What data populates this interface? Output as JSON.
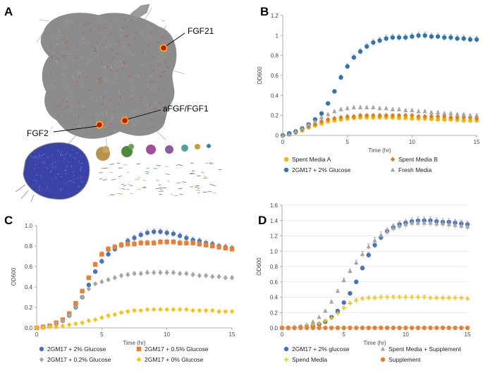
{
  "panel_labels": [
    "A",
    "B",
    "C",
    "D"
  ],
  "network": {
    "labels": [
      "FGF21",
      "aFGF/FGF1",
      "FGF2"
    ],
    "colors": {
      "main": "#8c8c8c",
      "edge": "#c03a2b",
      "node": "#e02020",
      "marker": "#d01010",
      "marker_ring": "#f2c100",
      "blue_cluster": "#3a43a8"
    }
  },
  "chart_data": [
    {
      "panel": "B",
      "type": "scatter",
      "xlabel": "Time (hr)",
      "ylabel": "OD600",
      "xlim": [
        0,
        15
      ],
      "ylim": [
        0,
        1.2
      ],
      "xticks": [
        0,
        5,
        10,
        15
      ],
      "yticks": [
        0,
        0.2,
        0.4,
        0.6,
        0.8,
        1,
        1.2
      ],
      "ytick_labels": [
        "0",
        "0.2",
        "0.4",
        "0.6",
        "0.8",
        "1",
        "1.2"
      ],
      "grid": false,
      "legend_position": "bottom",
      "x": [
        0,
        0.5,
        1,
        1.5,
        2,
        2.5,
        3,
        3.5,
        4,
        4.5,
        5,
        5.5,
        6,
        6.5,
        7,
        7.5,
        8,
        8.5,
        9,
        9.5,
        10,
        10.5,
        11,
        11.5,
        12,
        12.5,
        13,
        13.5,
        14,
        14.5,
        15
      ],
      "series": [
        {
          "name": "Spent Media A",
          "color": "#f5b800",
          "marker": "circle",
          "values": [
            0,
            0.01,
            0.03,
            0.05,
            0.08,
            0.1,
            0.12,
            0.14,
            0.15,
            0.16,
            0.17,
            0.175,
            0.18,
            0.18,
            0.18,
            0.18,
            0.18,
            0.18,
            0.175,
            0.175,
            0.17,
            0.17,
            0.17,
            0.165,
            0.16,
            0.16,
            0.16,
            0.155,
            0.15,
            0.15,
            0.15
          ]
        },
        {
          "name": "Spent Media B",
          "color": "#e07b1f",
          "marker": "diamond",
          "values": [
            0,
            0.01,
            0.03,
            0.06,
            0.09,
            0.11,
            0.14,
            0.16,
            0.17,
            0.18,
            0.19,
            0.19,
            0.2,
            0.2,
            0.2,
            0.2,
            0.2,
            0.2,
            0.2,
            0.2,
            0.2,
            0.19,
            0.19,
            0.19,
            0.19,
            0.19,
            0.18,
            0.18,
            0.18,
            0.18,
            0.17
          ]
        },
        {
          "name": "2GM17 + 2% Glucose",
          "color": "#2e75b6",
          "marker": "circle",
          "values": [
            0,
            0.02,
            0.04,
            0.07,
            0.11,
            0.16,
            0.22,
            0.32,
            0.44,
            0.58,
            0.69,
            0.78,
            0.84,
            0.89,
            0.93,
            0.95,
            0.97,
            0.98,
            0.98,
            0.98,
            0.99,
            1.0,
            1.0,
            0.99,
            0.99,
            0.98,
            0.98,
            0.97,
            0.97,
            0.96,
            0.96
          ]
        },
        {
          "name": "Fresh Media",
          "color": "#a6a6a6",
          "marker": "triangle",
          "values": [
            0,
            0.01,
            0.04,
            0.07,
            0.11,
            0.14,
            0.18,
            0.21,
            0.24,
            0.26,
            0.27,
            0.28,
            0.28,
            0.28,
            0.28,
            0.27,
            0.27,
            0.26,
            0.26,
            0.25,
            0.25,
            0.24,
            0.24,
            0.23,
            0.23,
            0.22,
            0.22,
            0.21,
            0.21,
            0.2,
            0.2
          ]
        }
      ]
    },
    {
      "panel": "C",
      "type": "scatter",
      "xlabel": "Time (hr)",
      "ylabel": "OD600",
      "xlim": [
        0,
        15
      ],
      "ylim": [
        0,
        1.0
      ],
      "xticks": [
        0,
        5,
        10,
        15
      ],
      "yticks": [
        0,
        0.2,
        0.4,
        0.6,
        0.8,
        1.0
      ],
      "ytick_labels": [
        "0.0",
        "0.2",
        "0.4",
        "0.6",
        "0.8",
        "1.0"
      ],
      "grid": false,
      "legend_position": "bottom",
      "x": [
        0,
        0.5,
        1,
        1.5,
        2,
        2.5,
        3,
        3.5,
        4,
        4.5,
        5,
        5.5,
        6,
        6.5,
        7,
        7.5,
        8,
        8.5,
        9,
        9.5,
        10,
        10.5,
        11,
        11.5,
        12,
        12.5,
        13,
        13.5,
        14,
        14.5,
        15
      ],
      "series": [
        {
          "name": "2GM17 + 2% Glucose",
          "color": "#4472c4",
          "marker": "circle",
          "values": [
            0,
            0.01,
            0.02,
            0.04,
            0.07,
            0.12,
            0.2,
            0.3,
            0.42,
            0.55,
            0.65,
            0.72,
            0.77,
            0.81,
            0.85,
            0.88,
            0.91,
            0.93,
            0.94,
            0.94,
            0.93,
            0.92,
            0.9,
            0.88,
            0.86,
            0.85,
            0.83,
            0.82,
            0.8,
            0.79,
            0.78
          ]
        },
        {
          "name": "2GM17 + 0.5% Glucose",
          "color": "#ed7d31",
          "marker": "square",
          "values": [
            0,
            0.01,
            0.02,
            0.05,
            0.08,
            0.14,
            0.24,
            0.36,
            0.49,
            0.62,
            0.72,
            0.77,
            0.79,
            0.81,
            0.82,
            0.82,
            0.83,
            0.83,
            0.83,
            0.84,
            0.84,
            0.84,
            0.83,
            0.83,
            0.83,
            0.82,
            0.81,
            0.8,
            0.79,
            0.78,
            0.77
          ]
        },
        {
          "name": "2GM17 + 0.2% Glucose",
          "color": "#a5a5a5",
          "marker": "diamond",
          "values": [
            0,
            0.01,
            0.02,
            0.04,
            0.07,
            0.12,
            0.2,
            0.3,
            0.38,
            0.43,
            0.45,
            0.47,
            0.49,
            0.51,
            0.52,
            0.53,
            0.53,
            0.54,
            0.54,
            0.54,
            0.54,
            0.54,
            0.53,
            0.53,
            0.52,
            0.51,
            0.51,
            0.5,
            0.5,
            0.49,
            0.49
          ]
        },
        {
          "name": "2GM17 + 0% Glucose",
          "color": "#ffc000",
          "marker": "diamond",
          "values": [
            0,
            0,
            0.01,
            0.01,
            0.02,
            0.03,
            0.04,
            0.05,
            0.07,
            0.08,
            0.1,
            0.12,
            0.13,
            0.15,
            0.16,
            0.17,
            0.17,
            0.18,
            0.18,
            0.18,
            0.18,
            0.18,
            0.18,
            0.18,
            0.17,
            0.17,
            0.17,
            0.17,
            0.16,
            0.16,
            0.16
          ]
        }
      ]
    },
    {
      "panel": "D",
      "type": "scatter",
      "xlabel": "Time (hr)",
      "ylabel": "OD600",
      "xlim": [
        0,
        15
      ],
      "ylim": [
        0,
        1.6
      ],
      "xticks": [
        0,
        5,
        10,
        15
      ],
      "yticks": [
        0,
        0.2,
        0.4,
        0.6,
        0.8,
        1.0,
        1.2,
        1.4,
        1.6
      ],
      "ytick_labels": [
        "0.0",
        "0.2",
        "0.4",
        "0.6",
        "0.8",
        "1.0",
        "1.2",
        "1.4",
        "1.6"
      ],
      "grid": true,
      "legend_position": "bottom",
      "x": [
        0,
        0.5,
        1,
        1.5,
        2,
        2.5,
        3,
        3.5,
        4,
        4.5,
        5,
        5.5,
        6,
        6.5,
        7,
        7.5,
        8,
        8.5,
        9,
        9.5,
        10,
        10.5,
        11,
        11.5,
        12,
        12.5,
        13,
        13.5,
        14,
        14.5,
        15
      ],
      "series": [
        {
          "name": "2GM17 + 2% glucose",
          "color": "#4472c4",
          "marker": "circle",
          "values": [
            0,
            0,
            0,
            0.01,
            0.02,
            0.03,
            0.05,
            0.08,
            0.14,
            0.22,
            0.33,
            0.45,
            0.6,
            0.78,
            0.95,
            1.08,
            1.18,
            1.26,
            1.31,
            1.35,
            1.37,
            1.39,
            1.4,
            1.4,
            1.4,
            1.39,
            1.38,
            1.38,
            1.37,
            1.36,
            1.35
          ]
        },
        {
          "name": "Spent Media + Supplement",
          "color": "#a5a5a5",
          "marker": "triangle",
          "values": [
            0,
            0,
            0.01,
            0.02,
            0.04,
            0.08,
            0.14,
            0.22,
            0.34,
            0.48,
            0.62,
            0.74,
            0.85,
            0.96,
            1.06,
            1.14,
            1.21,
            1.26,
            1.3,
            1.33,
            1.35,
            1.37,
            1.37,
            1.37,
            1.37,
            1.36,
            1.36,
            1.35,
            1.34,
            1.33,
            1.32
          ]
        },
        {
          "name": "Spend Media",
          "color": "#ffc000",
          "marker": "plus",
          "values": [
            0,
            0,
            0,
            0.01,
            0.02,
            0.04,
            0.06,
            0.09,
            0.13,
            0.19,
            0.26,
            0.32,
            0.36,
            0.38,
            0.39,
            0.39,
            0.4,
            0.4,
            0.4,
            0.4,
            0.4,
            0.4,
            0.4,
            0.4,
            0.39,
            0.39,
            0.39,
            0.39,
            0.39,
            0.39,
            0.38
          ]
        },
        {
          "name": "Supplement",
          "color": "#ed7d31",
          "marker": "circle",
          "values": [
            0,
            0,
            0,
            0,
            0,
            0,
            0,
            0,
            0,
            0,
            0,
            0,
            0,
            0,
            0,
            0,
            0,
            0,
            0,
            0,
            0,
            0,
            0,
            0,
            0,
            0,
            0,
            0,
            0,
            0,
            0
          ]
        }
      ]
    }
  ]
}
